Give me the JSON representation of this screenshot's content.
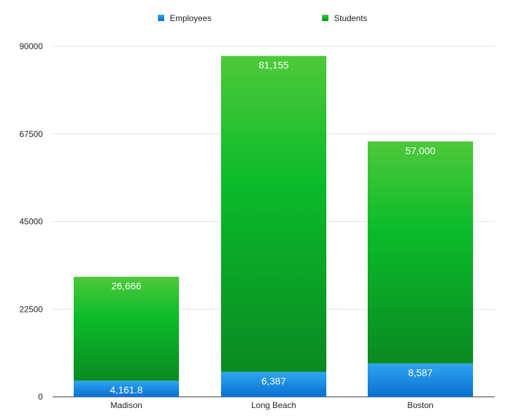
{
  "chart_data": {
    "type": "bar",
    "stacked": true,
    "categories": [
      "Madison",
      "Long Beach",
      "Boston"
    ],
    "series": [
      {
        "name": "Employees",
        "values": [
          4161.8,
          6387,
          8587
        ],
        "labels": [
          "4,161.8",
          "6,387",
          "8,587"
        ],
        "color": "#1a8fe0"
      },
      {
        "name": "Students",
        "values": [
          26666,
          81155,
          57000
        ],
        "labels": [
          "26,666",
          "81,155",
          "57,000"
        ],
        "color": "#12b02a"
      }
    ],
    "yticks": [
      "0",
      "22500",
      "45000",
      "67500",
      "90000"
    ],
    "ylim": [
      0,
      90000
    ],
    "grid": true,
    "legend_position": "top-center",
    "title": "",
    "xlabel": "",
    "ylabel": ""
  }
}
